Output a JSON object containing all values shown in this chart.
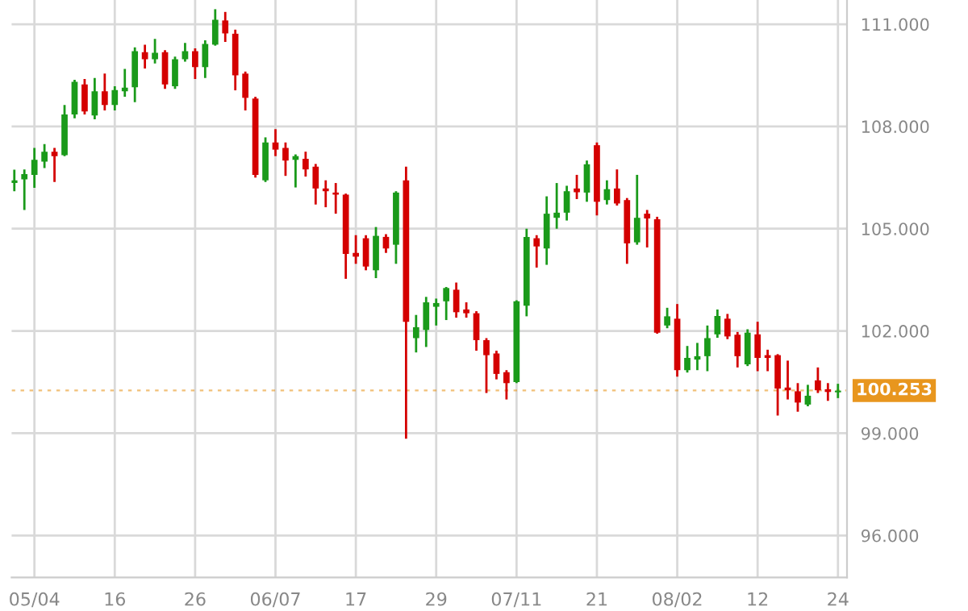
{
  "chart_data": {
    "type": "candlestick",
    "categories": [
      null,
      null,
      "05/04",
      null,
      null,
      null,
      null,
      null,
      null,
      null,
      "16",
      null,
      null,
      null,
      null,
      null,
      null,
      null,
      "26",
      null,
      null,
      null,
      null,
      null,
      null,
      null,
      "06/07",
      null,
      null,
      null,
      null,
      null,
      null,
      null,
      "17",
      null,
      null,
      null,
      null,
      null,
      null,
      null,
      "29",
      null,
      null,
      null,
      null,
      null,
      null,
      null,
      "07/11",
      null,
      null,
      null,
      null,
      null,
      null,
      null,
      "21",
      null,
      null,
      null,
      null,
      null,
      null,
      null,
      "08/02",
      null,
      null,
      null,
      null,
      null,
      null,
      null,
      "12",
      null,
      null,
      null,
      null,
      null,
      null,
      null,
      "24"
    ],
    "ohlc": [
      [
        106.34,
        106.73,
        106.1,
        106.42
      ],
      [
        106.45,
        106.74,
        105.55,
        106.6
      ],
      [
        106.58,
        107.37,
        106.2,
        107.02
      ],
      [
        106.97,
        107.48,
        106.78,
        107.26
      ],
      [
        107.26,
        107.37,
        106.37,
        107.13
      ],
      [
        107.16,
        108.63,
        107.13,
        108.35
      ],
      [
        108.35,
        109.37,
        108.24,
        109.31
      ],
      [
        109.23,
        109.39,
        108.35,
        108.44
      ],
      [
        108.32,
        109.42,
        108.21,
        109.03
      ],
      [
        109.03,
        109.55,
        108.47,
        108.63
      ],
      [
        108.63,
        109.18,
        108.47,
        109.07
      ],
      [
        109.03,
        109.69,
        108.87,
        109.14
      ],
      [
        109.15,
        110.32,
        108.71,
        110.21
      ],
      [
        110.18,
        110.4,
        109.7,
        109.97
      ],
      [
        109.97,
        110.57,
        109.85,
        110.16
      ],
      [
        110.18,
        110.24,
        109.1,
        109.23
      ],
      [
        109.18,
        110.05,
        109.1,
        109.97
      ],
      [
        109.97,
        110.45,
        109.9,
        110.21
      ],
      [
        110.21,
        110.29,
        109.39,
        109.74
      ],
      [
        109.74,
        110.53,
        109.42,
        110.42
      ],
      [
        110.4,
        111.44,
        110.37,
        111.13
      ],
      [
        111.11,
        111.36,
        110.48,
        110.73
      ],
      [
        110.72,
        110.84,
        109.06,
        109.5
      ],
      [
        109.55,
        109.61,
        108.47,
        108.84
      ],
      [
        108.82,
        108.87,
        106.5,
        106.58
      ],
      [
        106.42,
        107.68,
        106.37,
        107.53
      ],
      [
        107.53,
        107.92,
        107.13,
        107.32
      ],
      [
        107.37,
        107.53,
        106.55,
        107.0
      ],
      [
        107.02,
        107.18,
        106.21,
        107.13
      ],
      [
        107.05,
        107.26,
        106.53,
        106.74
      ],
      [
        106.82,
        106.9,
        105.71,
        106.18
      ],
      [
        106.18,
        106.42,
        105.63,
        106.1
      ],
      [
        106.06,
        106.34,
        105.44,
        106.0
      ],
      [
        106.0,
        106.03,
        103.53,
        104.26
      ],
      [
        104.29,
        104.81,
        103.97,
        104.18
      ],
      [
        104.72,
        104.81,
        103.78,
        103.89
      ],
      [
        103.78,
        105.05,
        103.55,
        104.79
      ],
      [
        104.76,
        104.84,
        104.29,
        104.42
      ],
      [
        104.53,
        106.1,
        103.97,
        106.06
      ],
      [
        106.42,
        106.82,
        98.84,
        102.27
      ],
      [
        101.79,
        102.47,
        101.37,
        102.11
      ],
      [
        102.03,
        103.0,
        101.53,
        102.84
      ],
      [
        102.71,
        102.95,
        102.16,
        102.82
      ],
      [
        102.87,
        103.29,
        102.32,
        103.26
      ],
      [
        103.21,
        103.42,
        102.39,
        102.55
      ],
      [
        102.63,
        102.84,
        102.39,
        102.52
      ],
      [
        102.52,
        102.58,
        101.42,
        101.73
      ],
      [
        101.73,
        101.79,
        100.18,
        101.29
      ],
      [
        101.34,
        101.42,
        100.58,
        100.74
      ],
      [
        100.79,
        100.85,
        99.99,
        100.47
      ],
      [
        100.5,
        102.9,
        100.47,
        102.87
      ],
      [
        102.74,
        105.0,
        102.43,
        104.76
      ],
      [
        104.72,
        104.81,
        103.86,
        104.48
      ],
      [
        104.42,
        105.95,
        103.94,
        105.44
      ],
      [
        105.32,
        106.34,
        105.0,
        105.47
      ],
      [
        105.47,
        106.26,
        105.24,
        106.1
      ],
      [
        106.18,
        106.58,
        105.87,
        106.07
      ],
      [
        106.06,
        107.0,
        105.79,
        106.89
      ],
      [
        107.45,
        107.53,
        105.39,
        105.79
      ],
      [
        105.84,
        106.42,
        105.71,
        106.16
      ],
      [
        106.18,
        106.74,
        105.68,
        105.74
      ],
      [
        105.84,
        105.9,
        103.97,
        104.57
      ],
      [
        104.6,
        106.58,
        104.53,
        105.32
      ],
      [
        105.44,
        105.55,
        104.45,
        105.3
      ],
      [
        105.28,
        105.35,
        101.92,
        101.95
      ],
      [
        102.16,
        102.68,
        102.08,
        102.43
      ],
      [
        102.36,
        102.79,
        100.66,
        100.85
      ],
      [
        100.85,
        101.56,
        100.78,
        101.21
      ],
      [
        101.16,
        101.65,
        100.85,
        101.26
      ],
      [
        101.26,
        102.16,
        100.82,
        101.79
      ],
      [
        101.9,
        102.63,
        101.8,
        102.44
      ],
      [
        102.36,
        102.5,
        101.76,
        101.84
      ],
      [
        101.89,
        101.97,
        100.93,
        101.26
      ],
      [
        101.02,
        102.05,
        100.97,
        101.95
      ],
      [
        101.9,
        102.27,
        100.82,
        101.21
      ],
      [
        101.29,
        101.45,
        100.82,
        101.21
      ],
      [
        101.29,
        101.32,
        99.52,
        100.31
      ],
      [
        100.34,
        101.13,
        99.99,
        100.26
      ],
      [
        100.23,
        100.47,
        99.63,
        99.9
      ],
      [
        99.84,
        100.42,
        99.79,
        100.1
      ],
      [
        100.55,
        100.93,
        100.18,
        100.26
      ],
      [
        100.29,
        100.47,
        99.95,
        100.21
      ],
      [
        100.2,
        100.45,
        100.03,
        100.25
      ]
    ],
    "colors": [
      "#1a9a1a",
      "#1a9a1a",
      "#1a9a1a",
      "#1a9a1a",
      "#d40000",
      "#1a9a1a",
      "#1a9a1a",
      "#d40000",
      "#1a9a1a",
      "#d40000",
      "#1a9a1a",
      "#1a9a1a",
      "#1a9a1a",
      "#d40000",
      "#1a9a1a",
      "#d40000",
      "#1a9a1a",
      "#1a9a1a",
      "#d40000",
      "#1a9a1a",
      "#1a9a1a",
      "#d40000",
      "#d40000",
      "#d40000",
      "#d40000",
      "#1a9a1a",
      "#d40000",
      "#d40000",
      "#1a9a1a",
      "#d40000",
      "#d40000",
      "#d40000",
      "#d40000",
      "#d40000",
      "#d40000",
      "#d40000",
      "#1a9a1a",
      "#d40000",
      "#1a9a1a",
      "#d40000",
      "#1a9a1a",
      "#1a9a1a",
      "#1a9a1a",
      "#1a9a1a",
      "#d40000",
      "#d40000",
      "#d40000",
      "#d40000",
      "#d40000",
      "#d40000",
      "#1a9a1a",
      "#1a9a1a",
      "#d40000",
      "#1a9a1a",
      "#1a9a1a",
      "#1a9a1a",
      "#d40000",
      "#1a9a1a",
      "#d40000",
      "#1a9a1a",
      "#d40000",
      "#d40000",
      "#1a9a1a",
      "#d40000",
      "#d40000",
      "#1a9a1a",
      "#d40000",
      "#1a9a1a",
      "#1a9a1a",
      "#1a9a1a",
      "#1a9a1a",
      "#d40000",
      "#d40000",
      "#1a9a1a",
      "#d40000",
      "#d40000",
      "#d40000",
      "#d40000",
      "#d40000",
      "#1a9a1a",
      "#d40000",
      "#d40000",
      "#1a9a1a"
    ],
    "ylim": [
      94.77,
      111.71
    ],
    "yticks": [
      {
        "value": 96,
        "label": "96.000"
      },
      {
        "value": 99,
        "label": "99.000"
      },
      {
        "value": 102,
        "label": "102.000"
      },
      {
        "value": 105,
        "label": "105.000"
      },
      {
        "value": 108,
        "label": "108.000"
      },
      {
        "value": 111,
        "label": "111.000"
      }
    ],
    "ref_lines": [
      {
        "axis": "y",
        "value": 100.253,
        "label": "100.253",
        "color": "#e8961e"
      }
    ],
    "grid": true
  }
}
